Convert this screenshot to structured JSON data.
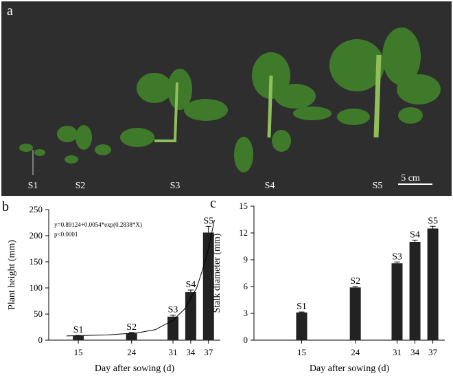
{
  "photo": {
    "panel_label": "a",
    "plant_labels": [
      "S1",
      "S2",
      "S3",
      "S4",
      "S5"
    ],
    "scale_bar": "5 cm"
  },
  "chart_data": [
    {
      "type": "bar",
      "panel_label": "b",
      "ylabel": "Plant height (mm)",
      "xlabel": "Day after sowing (d)",
      "annotation": [
        "y=0.89124+0.0054*exp(0.2838*X)",
        "p<0.0001"
      ],
      "x": [
        15,
        24,
        31,
        34,
        37
      ],
      "values": [
        8,
        13,
        45,
        92,
        206
      ],
      "errors": [
        1,
        1.5,
        3,
        4,
        12
      ],
      "bar_labels": [
        "S1",
        "S2",
        "S3",
        "S4",
        "S5"
      ],
      "color": "#222222",
      "fit": {
        "x": [
          13,
          20,
          25,
          28,
          31,
          33,
          35,
          36,
          37,
          38
        ],
        "values": [
          8,
          10,
          14,
          20,
          38,
          60,
          100,
          135,
          175,
          230
        ],
        "color": "#000000"
      },
      "xlim": [
        10,
        39
      ],
      "xticks": [
        15,
        24,
        31,
        34,
        37
      ],
      "ylim": [
        0,
        250
      ],
      "yticks": [
        0,
        50,
        100,
        150,
        200,
        250
      ]
    },
    {
      "type": "bar",
      "panel_label": "c",
      "ylabel": "Stalk diameter (mm)",
      "xlabel": "Day after sowing (d)",
      "x": [
        15,
        24,
        31,
        34,
        37
      ],
      "values": [
        3.1,
        5.9,
        8.6,
        11.0,
        12.5
      ],
      "errors": [
        0.05,
        0.1,
        0.15,
        0.2,
        0.25
      ],
      "bar_labels": [
        "S1",
        "S2",
        "S3",
        "S4",
        "S5"
      ],
      "color": "#222222",
      "xlim": [
        7,
        39
      ],
      "xticks": [
        15,
        24,
        31,
        34,
        37
      ],
      "ylim": [
        0,
        15
      ],
      "yticks": [
        0,
        3,
        6,
        9,
        12,
        15
      ]
    }
  ]
}
